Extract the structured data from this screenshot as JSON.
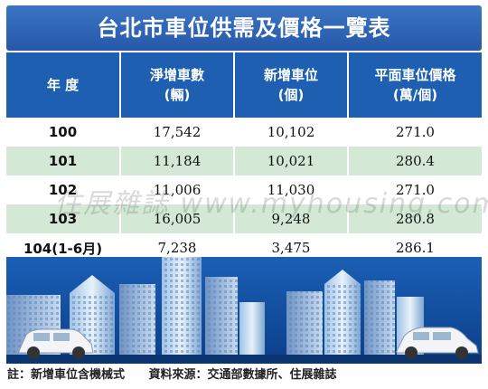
{
  "title": "台北市車位供需及價格一覽表",
  "chart_data": {
    "type": "table",
    "columns": [
      "年 度",
      "淨增車數\n(輛)",
      "新增車位\n(個)",
      "平面車位價格\n(萬/個)"
    ],
    "rows": [
      [
        "100",
        "17,542",
        "10,102",
        "271.0"
      ],
      [
        "101",
        "11,184",
        "10,021",
        "280.4"
      ],
      [
        "102",
        "11,006",
        "11,030",
        "271.0"
      ],
      [
        "103",
        "16,005",
        "9,248",
        "280.8"
      ],
      [
        "104(1-6月)",
        "7,238",
        "3,475",
        "286.1"
      ]
    ]
  },
  "watermark": "住展雜誌 www.myhousing.com.tw",
  "footer": {
    "note": "註：新增車位含機械式",
    "source": "資料來源：交通部數據所、住展雜誌"
  },
  "colors": {
    "header_blue": "#1f5fb1",
    "row_green": "#d3e9d6",
    "sky": "#0f4fa3"
  }
}
